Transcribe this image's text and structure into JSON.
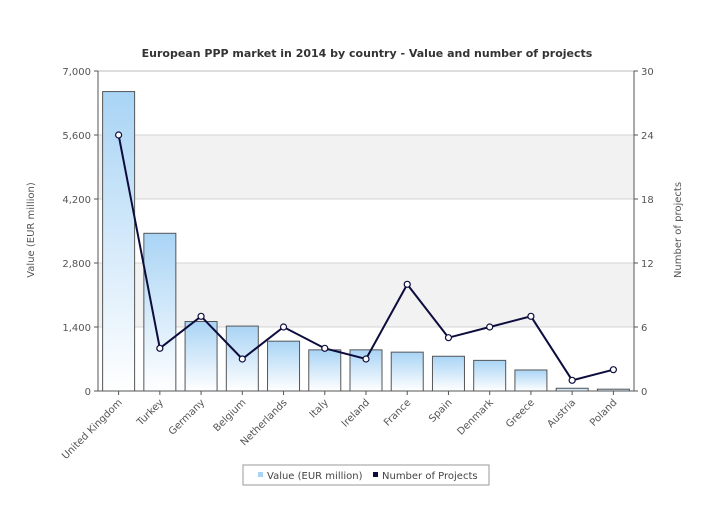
{
  "chart_data": {
    "type": "bar",
    "title": "European PPP market in 2014 by country - Value and number of projects",
    "categories": [
      "United Kingdom",
      "Turkey",
      "Germany",
      "Belgium",
      "Netherlands",
      "Italy",
      "Ireland",
      "France",
      "Spain",
      "Denmark",
      "Greece",
      "Austria",
      "Poland"
    ],
    "series": [
      {
        "name": "Value (EUR million)",
        "type": "bar",
        "axis": "left",
        "values": [
          6550,
          3450,
          1520,
          1420,
          1090,
          900,
          900,
          850,
          760,
          670,
          460,
          60,
          40
        ]
      },
      {
        "name": "Number of Projects",
        "type": "line",
        "axis": "right",
        "values": [
          24,
          4,
          7,
          3,
          6,
          4,
          3,
          10,
          5,
          6,
          7,
          1,
          2
        ]
      }
    ],
    "ylabel": "Value (EUR million)",
    "y2label": "Number of projects",
    "ylim": [
      0,
      7000
    ],
    "y2lim": [
      0,
      30
    ],
    "yticks": [
      "0",
      "1,400",
      "2,800",
      "4,200",
      "5,600",
      "7,000"
    ],
    "y2ticks": [
      "0",
      "6",
      "12",
      "18",
      "24",
      "30"
    ],
    "legend": "bottom-center",
    "grid": true,
    "colors": {
      "bar_top": "#a9d4f5",
      "bar_bottom": "#ffffff",
      "bar_stroke": "#555555",
      "line": "#0d0d3d",
      "band": "#f2f2f2"
    }
  }
}
